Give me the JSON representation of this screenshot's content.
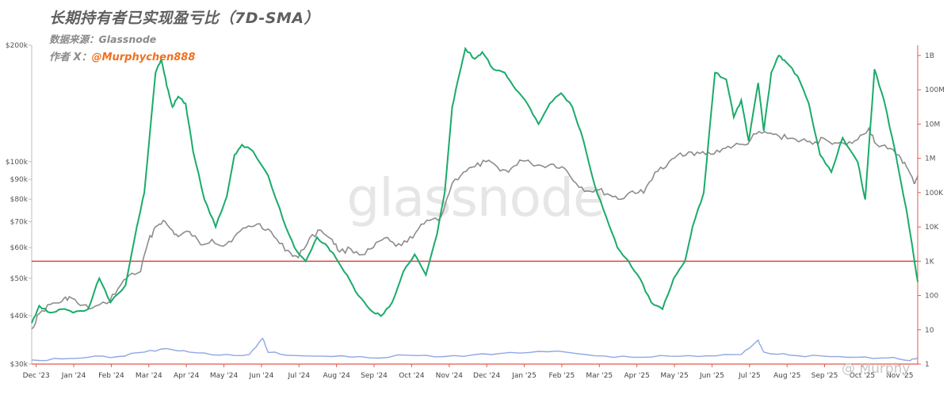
{
  "header": {
    "title": "长期持有者已实现盈亏比（7D-SMA）",
    "source": "数据来源：Glassnode",
    "author_prefix": "作者 X：",
    "author_handle": "@Murphychen888"
  },
  "watermark": {
    "brand": "glassnode",
    "corner": "@ Murphy"
  },
  "colors": {
    "price": "#8c8c8c",
    "ratio": "#1aab6a",
    "volume": "#8fa7e3",
    "threshold": "#d9464a",
    "right_axis": "#e05a4e"
  },
  "chart_data": {
    "type": "line",
    "x_ticks": [
      "Dec '23",
      "Jan '24",
      "Feb '24",
      "Mar '24",
      "Apr '24",
      "May '24",
      "Jun '24",
      "Jul '24",
      "Aug '24",
      "Sep '24",
      "Oct '24",
      "Nov '24",
      "Dec '24",
      "Jan '25",
      "Feb '25",
      "Mar '25",
      "Apr '25",
      "May '25",
      "Jun '25",
      "Jul '25",
      "Aug '25",
      "Sep '25",
      "Oct '25",
      "Nov '25"
    ],
    "x_range": [
      0,
      23.6
    ],
    "left_axis": {
      "scale": "log",
      "range": [
        30000,
        200000
      ],
      "ticks": [
        {
          "v": 200000,
          "label": "$200k"
        },
        {
          "v": 100000,
          "label": "$100k"
        },
        {
          "v": 90000,
          "label": "$90k"
        },
        {
          "v": 80000,
          "label": "$80k"
        },
        {
          "v": 70000,
          "label": "$70k"
        },
        {
          "v": 60000,
          "label": "$60k"
        },
        {
          "v": 50000,
          "label": "$50k"
        },
        {
          "v": 40000,
          "label": "$40k"
        },
        {
          "v": 30000,
          "label": "$30k"
        }
      ]
    },
    "right_axis": {
      "scale": "log",
      "range_exp": [
        0,
        9.3
      ],
      "ticks": [
        {
          "e": 9,
          "label": "1B"
        },
        {
          "e": 8,
          "label": "100M"
        },
        {
          "e": 7,
          "label": "10M"
        },
        {
          "e": 6,
          "label": "1M"
        },
        {
          "e": 5,
          "label": "100K"
        },
        {
          "e": 4,
          "label": "10K"
        },
        {
          "e": 3,
          "label": "1K"
        },
        {
          "e": 2,
          "label": "100"
        },
        {
          "e": 1,
          "label": "10"
        },
        {
          "e": 0,
          "label": "1"
        }
      ]
    },
    "threshold_exp": 3,
    "series": [
      {
        "key": "price",
        "axis": "left",
        "points": [
          [
            0,
            37000
          ],
          [
            0.2,
            40500
          ],
          [
            0.5,
            42800
          ],
          [
            0.8,
            43500
          ],
          [
            1.0,
            44800
          ],
          [
            1.3,
            42500
          ],
          [
            1.6,
            41800
          ],
          [
            2.0,
            43000
          ],
          [
            2.3,
            47000
          ],
          [
            2.6,
            51000
          ],
          [
            2.9,
            52000
          ],
          [
            3.1,
            62000
          ],
          [
            3.3,
            68000
          ],
          [
            3.5,
            70500
          ],
          [
            3.7,
            67000
          ],
          [
            3.9,
            64000
          ],
          [
            4.2,
            66000
          ],
          [
            4.5,
            61000
          ],
          [
            4.8,
            63000
          ],
          [
            5.1,
            60500
          ],
          [
            5.4,
            64000
          ],
          [
            5.7,
            67500
          ],
          [
            6.0,
            69000
          ],
          [
            6.3,
            67000
          ],
          [
            6.6,
            61500
          ],
          [
            6.9,
            58000
          ],
          [
            7.1,
            56500
          ],
          [
            7.4,
            63500
          ],
          [
            7.7,
            66500
          ],
          [
            8.0,
            63000
          ],
          [
            8.2,
            58500
          ],
          [
            8.5,
            59500
          ],
          [
            8.8,
            57500
          ],
          [
            9.1,
            60000
          ],
          [
            9.4,
            63500
          ],
          [
            9.7,
            60500
          ],
          [
            10.0,
            62000
          ],
          [
            10.3,
            67000
          ],
          [
            10.6,
            70500
          ],
          [
            10.9,
            72000
          ],
          [
            11.2,
            88000
          ],
          [
            11.5,
            94000
          ],
          [
            11.8,
            97000
          ],
          [
            12.1,
            100000
          ],
          [
            12.4,
            97000
          ],
          [
            12.7,
            94000
          ],
          [
            13.0,
            101000
          ],
          [
            13.3,
            99000
          ],
          [
            13.6,
            97500
          ],
          [
            13.9,
            98500
          ],
          [
            14.2,
            96000
          ],
          [
            14.5,
            88000
          ],
          [
            14.8,
            84000
          ],
          [
            15.1,
            84500
          ],
          [
            15.4,
            82000
          ],
          [
            15.7,
            80000
          ],
          [
            16.0,
            84000
          ],
          [
            16.3,
            83000
          ],
          [
            16.6,
            94000
          ],
          [
            16.9,
            97000
          ],
          [
            17.2,
            104000
          ],
          [
            17.5,
            106000
          ],
          [
            17.8,
            105000
          ],
          [
            18.1,
            104500
          ],
          [
            18.4,
            108000
          ],
          [
            18.7,
            110000
          ],
          [
            19.0,
            110500
          ],
          [
            19.3,
            118000
          ],
          [
            19.6,
            118500
          ],
          [
            19.9,
            116500
          ],
          [
            20.2,
            115000
          ],
          [
            20.5,
            113500
          ],
          [
            20.8,
            111000
          ],
          [
            21.1,
            115000
          ],
          [
            21.4,
            112000
          ],
          [
            21.7,
            110500
          ],
          [
            22.0,
            114000
          ],
          [
            22.3,
            122000
          ],
          [
            22.5,
            111000
          ],
          [
            22.8,
            108000
          ],
          [
            23.1,
            104000
          ],
          [
            23.3,
            97000
          ],
          [
            23.5,
            88000
          ],
          [
            23.6,
            92000
          ]
        ]
      },
      {
        "key": "ratio",
        "axis": "right",
        "points": [
          [
            0,
            1.2
          ],
          [
            0.2,
            1.7
          ],
          [
            0.5,
            1.5
          ],
          [
            0.8,
            1.6
          ],
          [
            1.1,
            1.5
          ],
          [
            1.5,
            1.6
          ],
          [
            1.8,
            2.5
          ],
          [
            2.1,
            1.8
          ],
          [
            2.5,
            2.3
          ],
          [
            2.8,
            4.0
          ],
          [
            3.0,
            5.0
          ],
          [
            3.3,
            8.5
          ],
          [
            3.45,
            8.9
          ],
          [
            3.6,
            8.1
          ],
          [
            3.75,
            7.5
          ],
          [
            3.9,
            7.8
          ],
          [
            4.1,
            7.6
          ],
          [
            4.3,
            6.2
          ],
          [
            4.6,
            4.8
          ],
          [
            4.9,
            4.0
          ],
          [
            5.2,
            4.9
          ],
          [
            5.4,
            6.1
          ],
          [
            5.6,
            6.4
          ],
          [
            5.9,
            6.2
          ],
          [
            6.3,
            5.5
          ],
          [
            6.7,
            4.2
          ],
          [
            7.0,
            3.4
          ],
          [
            7.3,
            3.0
          ],
          [
            7.6,
            3.7
          ],
          [
            7.9,
            3.4
          ],
          [
            8.1,
            3.1
          ],
          [
            8.4,
            2.6
          ],
          [
            8.7,
            2.0
          ],
          [
            9.0,
            1.6
          ],
          [
            9.3,
            1.4
          ],
          [
            9.6,
            1.8
          ],
          [
            9.9,
            2.7
          ],
          [
            10.2,
            3.2
          ],
          [
            10.5,
            2.6
          ],
          [
            10.8,
            3.8
          ],
          [
            11.0,
            5.0
          ],
          [
            11.2,
            7.5
          ],
          [
            11.4,
            8.5
          ],
          [
            11.55,
            9.2
          ],
          [
            11.8,
            8.9
          ],
          [
            12.0,
            9.1
          ],
          [
            12.3,
            8.6
          ],
          [
            12.6,
            8.5
          ],
          [
            12.9,
            8.0
          ],
          [
            13.2,
            7.6
          ],
          [
            13.5,
            7.0
          ],
          [
            13.8,
            7.6
          ],
          [
            14.1,
            7.9
          ],
          [
            14.4,
            7.5
          ],
          [
            14.7,
            6.5
          ],
          [
            15.0,
            5.2
          ],
          [
            15.3,
            4.3
          ],
          [
            15.6,
            3.4
          ],
          [
            15.9,
            3.0
          ],
          [
            16.2,
            2.5
          ],
          [
            16.5,
            1.8
          ],
          [
            16.8,
            1.6
          ],
          [
            17.1,
            2.5
          ],
          [
            17.4,
            3.0
          ],
          [
            17.6,
            4.0
          ],
          [
            17.9,
            5.0
          ],
          [
            18.2,
            8.5
          ],
          [
            18.5,
            8.3
          ],
          [
            18.7,
            7.2
          ],
          [
            18.9,
            7.7
          ],
          [
            19.1,
            6.5
          ],
          [
            19.35,
            8.2
          ],
          [
            19.5,
            6.8
          ],
          [
            19.7,
            8.5
          ],
          [
            19.9,
            9.0
          ],
          [
            20.1,
            8.8
          ],
          [
            20.4,
            8.4
          ],
          [
            20.7,
            7.6
          ],
          [
            21.0,
            6.1
          ],
          [
            21.3,
            5.6
          ],
          [
            21.6,
            6.6
          ],
          [
            22.0,
            5.9
          ],
          [
            22.2,
            4.8
          ],
          [
            22.45,
            8.6
          ],
          [
            22.7,
            7.7
          ],
          [
            23.0,
            6.2
          ],
          [
            23.3,
            4.5
          ],
          [
            23.6,
            2.4
          ]
        ]
      },
      {
        "key": "volume",
        "axis": "right",
        "points": [
          [
            0,
            0.12
          ],
          [
            0.8,
            0.15
          ],
          [
            1.5,
            0.2
          ],
          [
            2.3,
            0.22
          ],
          [
            3.0,
            0.35
          ],
          [
            3.6,
            0.45
          ],
          [
            4.2,
            0.35
          ],
          [
            5.0,
            0.26
          ],
          [
            5.8,
            0.28
          ],
          [
            6.15,
            0.75
          ],
          [
            6.3,
            0.34
          ],
          [
            7.0,
            0.25
          ],
          [
            8.0,
            0.22
          ],
          [
            9.0,
            0.18
          ],
          [
            10.0,
            0.26
          ],
          [
            11.0,
            0.22
          ],
          [
            12.0,
            0.3
          ],
          [
            13.0,
            0.32
          ],
          [
            14.0,
            0.38
          ],
          [
            15.0,
            0.24
          ],
          [
            16.0,
            0.2
          ],
          [
            17.0,
            0.23
          ],
          [
            18.0,
            0.24
          ],
          [
            18.9,
            0.28
          ],
          [
            19.35,
            0.7
          ],
          [
            19.5,
            0.35
          ],
          [
            20.2,
            0.26
          ],
          [
            21.0,
            0.24
          ],
          [
            22.0,
            0.2
          ],
          [
            22.8,
            0.18
          ],
          [
            23.4,
            0.1
          ],
          [
            23.6,
            0.2
          ]
        ]
      }
    ]
  }
}
